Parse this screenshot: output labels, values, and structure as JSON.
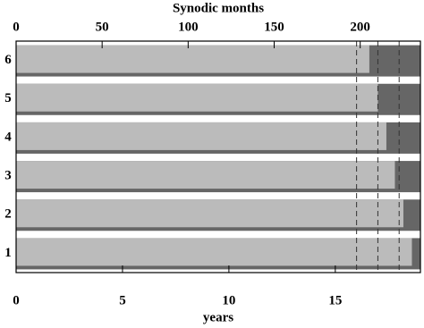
{
  "chart_data": {
    "type": "bar",
    "orientation": "horizontal",
    "x2label": "Synodic months",
    "xlabel": "years",
    "categories": [
      "1",
      "2",
      "3",
      "4",
      "5",
      "6"
    ],
    "series": [
      {
        "color": "#666666",
        "values": [
          19,
          19,
          19,
          19,
          19,
          19
        ]
      },
      {
        "color": "#bbbbbb",
        "values": [
          18.6,
          18.2,
          17.8,
          17.4,
          17.0,
          16.6
        ]
      }
    ],
    "xlim": [
      0,
      19
    ],
    "xticks": [
      0,
      5,
      10,
      15
    ],
    "x2lim": [
      0,
      235
    ],
    "x2ticks": [
      0,
      50,
      100,
      150,
      200
    ],
    "reference_lines": [
      16,
      17,
      18
    ]
  }
}
